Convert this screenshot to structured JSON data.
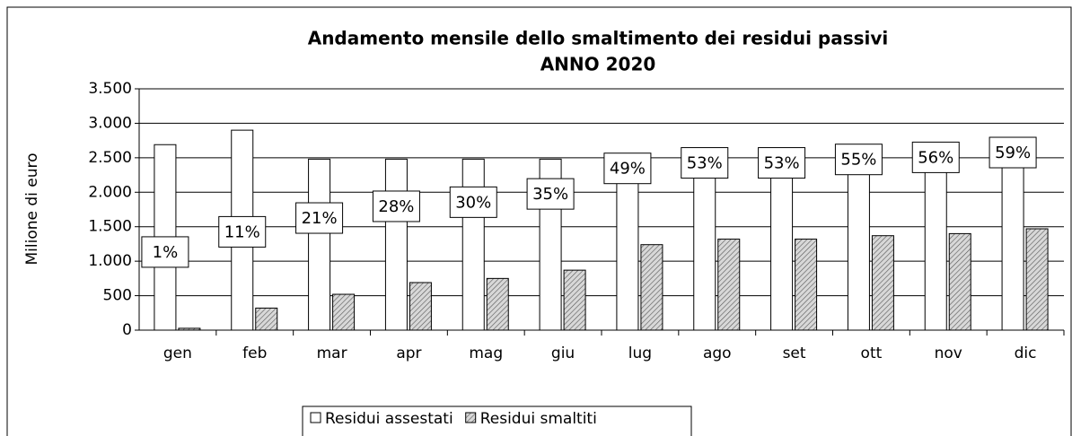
{
  "chart_data": {
    "type": "bar",
    "title": "Andamento mensile dello smaltimento dei residui passivi",
    "subtitle": "ANNO 2020",
    "y_label": "Milione di euro",
    "categories": [
      "gen",
      "feb",
      "mar",
      "apr",
      "mag",
      "giu",
      "lug",
      "ago",
      "set",
      "ott",
      "nov",
      "dic"
    ],
    "series": [
      {
        "name": "Residui assestati",
        "color": "#ffffff",
        "values": [
          2690,
          2900,
          2480,
          2480,
          2480,
          2480,
          2490,
          2490,
          2490,
          2490,
          2500,
          2490
        ]
      },
      {
        "name": "Residui smaltiti",
        "color": "#ffffff",
        "pattern": "hatch",
        "values": [
          27,
          320,
          520,
          690,
          750,
          870,
          1240,
          1320,
          1320,
          1370,
          1400,
          1470
        ]
      }
    ],
    "annotations": [
      "1%",
      "11%",
      "21%",
      "28%",
      "30%",
      "35%",
      "49%",
      "53%",
      "53%",
      "55%",
      "56%",
      "59%"
    ],
    "ylim": [
      0,
      3500
    ],
    "yticks": [
      0,
      500,
      {
        "value": 1000,
        "label": "1.000"
      },
      {
        "value": 1500,
        "label": "1.500"
      },
      {
        "value": 2000,
        "label": "2.000"
      },
      {
        "value": 2500,
        "label": "2.500"
      },
      {
        "value": 3000,
        "label": "3.000"
      },
      {
        "value": 3500,
        "label": "3.500"
      }
    ],
    "grid": true,
    "legend": "bottom"
  }
}
